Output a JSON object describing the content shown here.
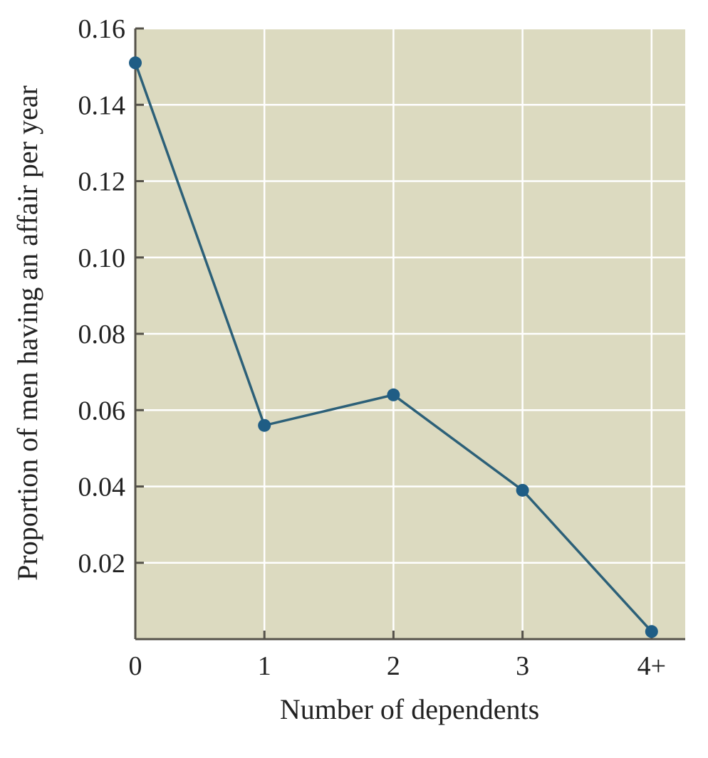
{
  "chart_data": {
    "type": "line",
    "title": "",
    "xlabel": "Number of dependents",
    "ylabel": "Proportion of men having an affair per year",
    "categories": [
      "0",
      "1",
      "2",
      "3",
      "4+"
    ],
    "series": [
      {
        "values": [
          0.151,
          0.056,
          0.064,
          0.039,
          0.002
        ]
      }
    ],
    "ylim": [
      0,
      0.16
    ],
    "yticks": [
      "0.02",
      "0.04",
      "0.06",
      "0.08",
      "0.10",
      "0.12",
      "0.14",
      "0.16"
    ],
    "grid": true,
    "colors": {
      "background": "#dcdac0",
      "line": "#2c6078",
      "marker": "#1f5d85",
      "grid": "#ffffff",
      "axis": "#55524a"
    }
  }
}
